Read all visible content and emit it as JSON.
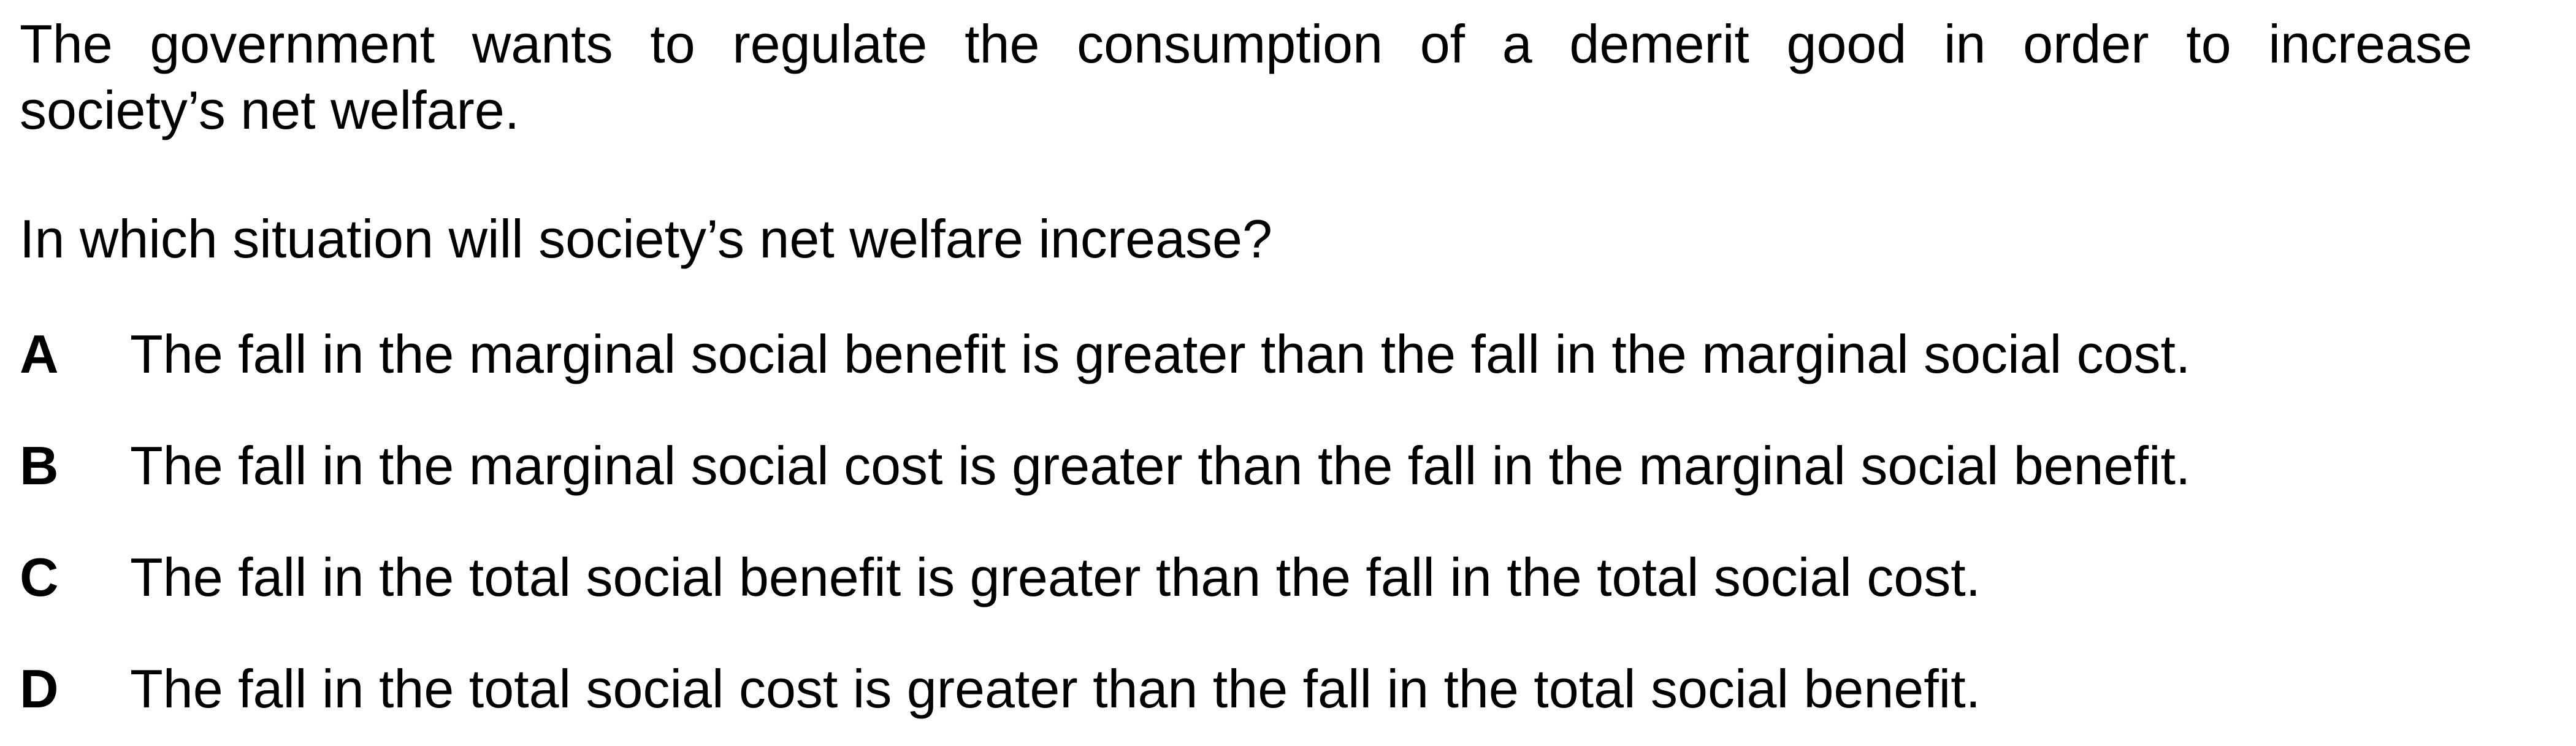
{
  "question": {
    "stem_line_1": "The government wants to regulate the consumption of a demerit good in order to increase",
    "stem_line_2": "society’s net welfare.",
    "prompt": "In which situation will society’s net welfare increase?"
  },
  "options": [
    {
      "letter": "A",
      "text": "The fall in the marginal social benefit is greater than the fall in the marginal social cost."
    },
    {
      "letter": "B",
      "text": "The fall in the marginal social cost is greater than the fall in the marginal social benefit."
    },
    {
      "letter": "C",
      "text": "The fall in the total social benefit is greater than the fall in the total social cost."
    },
    {
      "letter": "D",
      "text": "The fall in the total social cost is greater than the fall in the total social benefit."
    }
  ]
}
